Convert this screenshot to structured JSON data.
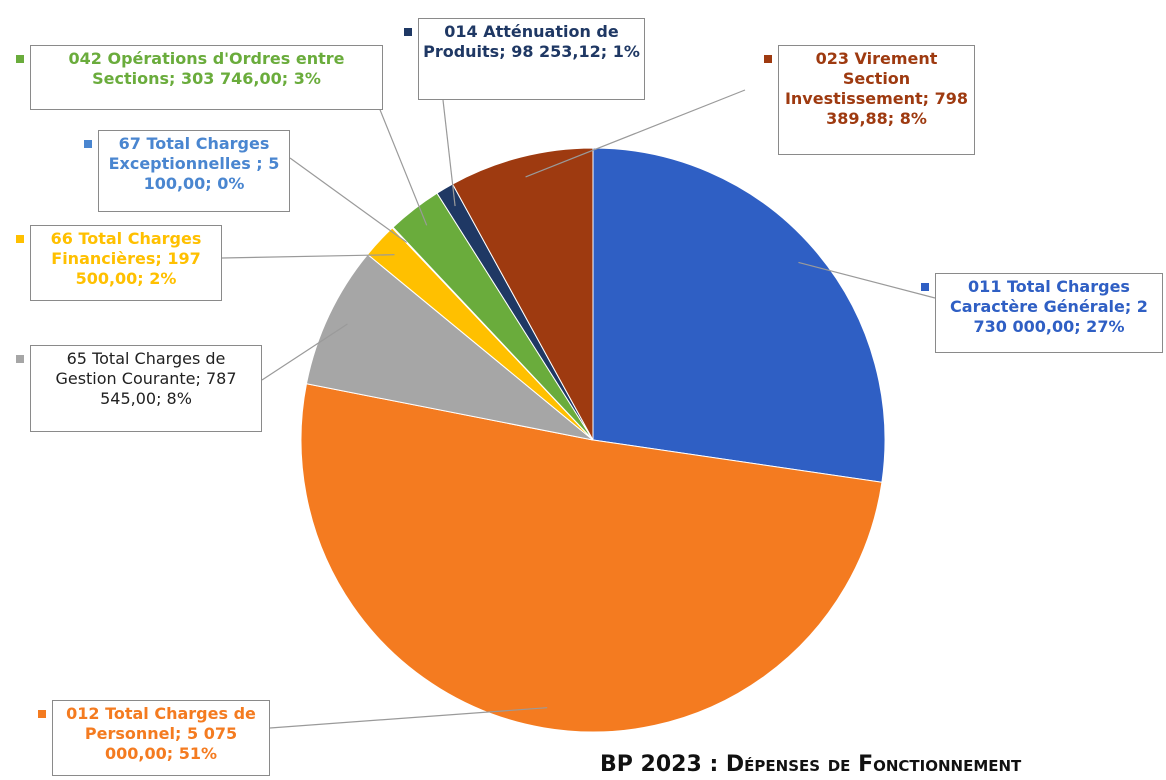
{
  "chart_data": {
    "type": "pie",
    "title": "BP 2023 : Dépenses de Fonctionnement",
    "categories": [
      "011 Total Charges Caractère Générale;",
      "012 Total Charges de Personnel;",
      "65 Total Charges de Gestion Courante;",
      "66 Total Charges Financières;",
      "67 Total Charges Exceptionnelles ;",
      "042 Opérations d'Ordres entre Sections;",
      "014 Atténuation de Produits;",
      "023 Virement Section Investissement;"
    ],
    "values": [
      2730000,
      5075000,
      787545,
      197500,
      5100,
      303746,
      98253.12,
      798389.88
    ],
    "value_labels": [
      "2 730 000,00; 27%",
      "5 075 000,00; 51%",
      "787 545,00; 8%",
      "197 500,00; 2%",
      "5 100,00; 0%",
      "303 746,00; 3%",
      "98 253,12; 1%",
      "798 389,88; 8%"
    ],
    "colors": [
      "#2f5fc4",
      "#f47b20",
      "#a6a6a6",
      "#ffc000",
      "#4a86d0",
      "#6aac3c",
      "#1f3864",
      "#9e3a10"
    ]
  }
}
